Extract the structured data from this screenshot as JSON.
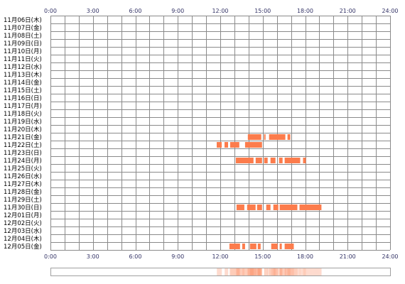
{
  "chart_data": {
    "type": "heatmap",
    "x_ticks": [
      "0:00",
      "3:00",
      "6:00",
      "9:00",
      "12:00",
      "15:00",
      "18:00",
      "21:00",
      "24:00"
    ],
    "xlim": [
      0,
      24
    ],
    "grid": true,
    "bar_color": "#fc7c4c",
    "summary_strip_color": "#fc7c4c",
    "rows": [
      {
        "label": "11月06日(木)",
        "segments": []
      },
      {
        "label": "11月07日(金)",
        "segments": []
      },
      {
        "label": "11月08日(土)",
        "segments": []
      },
      {
        "label": "11月09日(日)",
        "segments": []
      },
      {
        "label": "11月10日(月)",
        "segments": []
      },
      {
        "label": "11月11日(火)",
        "segments": []
      },
      {
        "label": "11月12日(水)",
        "segments": []
      },
      {
        "label": "11月13日(木)",
        "segments": []
      },
      {
        "label": "11月14日(金)",
        "segments": []
      },
      {
        "label": "11月15日(土)",
        "segments": []
      },
      {
        "label": "11月16日(日)",
        "segments": []
      },
      {
        "label": "11月17日(月)",
        "segments": []
      },
      {
        "label": "11月18日(火)",
        "segments": []
      },
      {
        "label": "11月19日(水)",
        "segments": []
      },
      {
        "label": "11月20日(木)",
        "segments": []
      },
      {
        "label": "11月21日(金)",
        "segments": [
          [
            13.95,
            14.9
          ],
          [
            15.1,
            15.2
          ],
          [
            15.45,
            16.6
          ],
          [
            16.75,
            16.95
          ]
        ]
      },
      {
        "label": "11月22日(土)",
        "segments": [
          [
            11.75,
            12.1
          ],
          [
            12.3,
            12.55
          ],
          [
            12.7,
            13.35
          ],
          [
            13.75,
            14.95
          ]
        ]
      },
      {
        "label": "11月23日(日)",
        "segments": []
      },
      {
        "label": "11月24日(月)",
        "segments": [
          [
            13.1,
            14.35
          ],
          [
            14.5,
            14.95
          ],
          [
            15.1,
            15.35
          ],
          [
            15.55,
            15.9
          ],
          [
            16.15,
            16.4
          ],
          [
            16.55,
            17.65
          ],
          [
            17.85,
            18.05
          ]
        ]
      },
      {
        "label": "11月25日(火)",
        "segments": []
      },
      {
        "label": "11月26日(水)",
        "segments": []
      },
      {
        "label": "11月27日(木)",
        "segments": []
      },
      {
        "label": "11月28日(金)",
        "segments": []
      },
      {
        "label": "11月29日(土)",
        "segments": []
      },
      {
        "label": "11月30日(日)",
        "segments": [
          [
            13.15,
            13.7
          ],
          [
            13.9,
            14.5
          ],
          [
            14.6,
            14.95
          ],
          [
            15.25,
            15.55
          ],
          [
            15.75,
            16.1
          ],
          [
            16.2,
            17.45
          ],
          [
            17.6,
            19.15
          ]
        ]
      },
      {
        "label": "12月01日(月)",
        "segments": []
      },
      {
        "label": "12月02日(火)",
        "segments": []
      },
      {
        "label": "12月03日(水)",
        "segments": []
      },
      {
        "label": "12月04日(木)",
        "segments": []
      },
      {
        "label": "12月05日(金)",
        "segments": [
          [
            12.65,
            13.4
          ],
          [
            13.55,
            13.75
          ],
          [
            14.1,
            14.55
          ],
          [
            14.65,
            14.85
          ],
          [
            15.6,
            16.05
          ],
          [
            16.2,
            16.35
          ],
          [
            16.55,
            17.2
          ]
        ]
      }
    ]
  }
}
